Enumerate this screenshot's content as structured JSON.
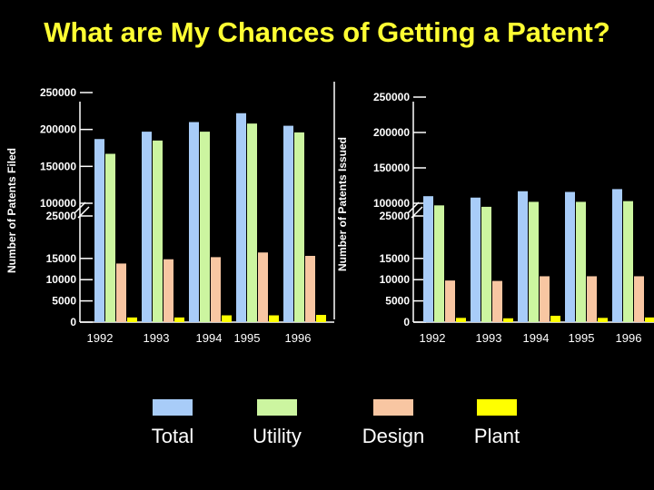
{
  "title": "What are My Chances of Getting a Patent?",
  "colors": {
    "Total": "#a8ccf8",
    "Utility": "#ccf5a0",
    "Design": "#f8c6a2",
    "Plant": "#ffff00",
    "axis": "#ffffff",
    "title": "#ffff33"
  },
  "legend": [
    "Total",
    "Utility",
    "Design",
    "Plant"
  ],
  "chart_data": [
    {
      "type": "bar",
      "ylabel": "Number of Patents Filed",
      "categories": [
        "1992",
        "1993",
        "1994",
        "1995",
        "1996"
      ],
      "yticks": [
        "250000",
        "200000",
        "150000",
        "100000",
        "25000",
        "15000",
        "10000",
        "5000",
        "0"
      ],
      "axis_break": "between 100000 and 25000",
      "series": [
        {
          "name": "Total",
          "values": [
            187000,
            197000,
            210000,
            222000,
            205000
          ]
        },
        {
          "name": "Utility",
          "values": [
            167000,
            185000,
            197000,
            208000,
            196000
          ]
        },
        {
          "name": "Design",
          "values": [
            13800,
            14800,
            15300,
            16400,
            15600
          ]
        },
        {
          "name": "Plant",
          "values": [
            1100,
            1100,
            1600,
            1600,
            1700
          ]
        }
      ]
    },
    {
      "type": "bar",
      "ylabel": "Number of Patents Issued",
      "categories": [
        "1992",
        "1993",
        "1994",
        "1995",
        "1996"
      ],
      "yticks": [
        "250000",
        "200000",
        "150000",
        "100000",
        "25000",
        "15000",
        "10000",
        "5000",
        "0"
      ],
      "axis_break": "between 100000 and 25000",
      "series": [
        {
          "name": "Total",
          "values": [
            110000,
            108000,
            117000,
            116000,
            120000
          ]
        },
        {
          "name": "Utility",
          "values": [
            97000,
            95000,
            102000,
            102000,
            103000
          ]
        },
        {
          "name": "Design",
          "values": [
            9800,
            9700,
            10800,
            10800,
            10800
          ]
        },
        {
          "name": "Plant",
          "values": [
            1000,
            900,
            1500,
            1000,
            1100
          ]
        }
      ]
    }
  ]
}
